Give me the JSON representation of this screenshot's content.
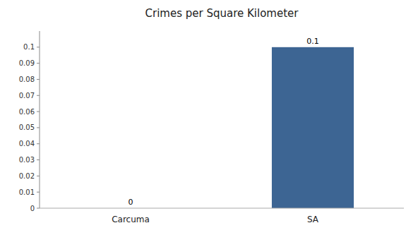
{
  "chart_data": {
    "type": "bar",
    "title": "Crimes per Square Kilometer",
    "categories": [
      "Carcuma",
      "SA"
    ],
    "values": [
      0,
      0.1
    ],
    "colors": [
      "#3d6593",
      "#3d6593"
    ],
    "ylim": [
      0,
      0.11
    ],
    "yticks": [
      0,
      0.01,
      0.02,
      0.03,
      0.04,
      0.05,
      0.06,
      0.07,
      0.08,
      0.09,
      0.1
    ],
    "grid": false,
    "data_labels": true
  }
}
